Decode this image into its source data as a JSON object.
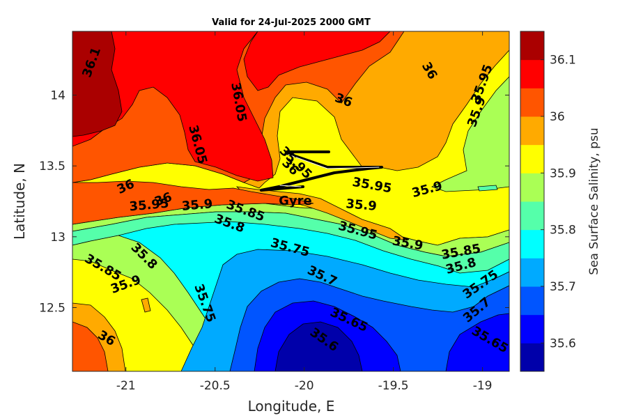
{
  "chart_data": {
    "type": "contour",
    "title": "Valid for 24-Jul-2025 2000 GMT",
    "xlabel": "Longitude, E",
    "ylabel": "Latitude, N",
    "xlim": [
      -21.3,
      -18.85
    ],
    "ylim": [
      12.05,
      14.45
    ],
    "xticks": [
      -21,
      -20.5,
      -20,
      -19.5,
      -19
    ],
    "xtick_labels": [
      "-21",
      "-20.5",
      "-20",
      "-19.5",
      "-19"
    ],
    "yticks": [
      12.5,
      13,
      13.5,
      14
    ],
    "ytick_labels": [
      "12.5",
      "13",
      "13.5",
      "14"
    ],
    "colorbar": {
      "label": "Sea Surface Salinity, psu",
      "position": "right",
      "min": 35.55,
      "max": 36.15,
      "step": 0.05,
      "ticks": [
        35.6,
        35.7,
        35.8,
        35.9,
        36,
        36.1
      ],
      "tick_labels": [
        "35.6",
        "35.7",
        "35.8",
        "35.9",
        "36",
        "36.1"
      ],
      "colors": [
        "#0000aa",
        "#0000ff",
        "#0055ff",
        "#00aaff",
        "#00ffff",
        "#55ffaa",
        "#aaff55",
        "#ffff00",
        "#ffaa00",
        "#ff5500",
        "#ff0000",
        "#aa0000"
      ]
    },
    "contour_levels": [
      35.55,
      35.6,
      35.65,
      35.7,
      35.75,
      35.8,
      35.85,
      35.9,
      35.95,
      36,
      36.05,
      36.1,
      36.15
    ],
    "contour_labels": [
      {
        "text": "36.1",
        "lon": -21.19,
        "lat": 14.23
      },
      {
        "text": "36.05",
        "lon": -20.37,
        "lat": 13.95
      },
      {
        "text": "36.05",
        "lon": -20.6,
        "lat": 13.65
      },
      {
        "text": "36",
        "lon": -19.78,
        "lat": 13.96
      },
      {
        "text": "36",
        "lon": -19.3,
        "lat": 14.17
      },
      {
        "text": "35.95",
        "lon": -19.0,
        "lat": 14.08
      },
      {
        "text": "35.9",
        "lon": -19.03,
        "lat": 13.88
      },
      {
        "text": "36",
        "lon": -21.0,
        "lat": 13.35
      },
      {
        "text": "36",
        "lon": -20.79,
        "lat": 13.26
      },
      {
        "text": "36",
        "lon": -20.08,
        "lat": 13.49
      },
      {
        "text": "35.95",
        "lon": -20.05,
        "lat": 13.52
      },
      {
        "text": "35.95",
        "lon": -20.87,
        "lat": 13.22
      },
      {
        "text": "35.9",
        "lon": -20.6,
        "lat": 13.22
      },
      {
        "text": "35.85",
        "lon": -20.33,
        "lat": 13.18
      },
      {
        "text": "35.8",
        "lon": -20.42,
        "lat": 13.09
      },
      {
        "text": "35.95",
        "lon": -19.62,
        "lat": 13.36
      },
      {
        "text": "35.9",
        "lon": -19.31,
        "lat": 13.33
      },
      {
        "text": "35.9",
        "lon": -19.68,
        "lat": 13.22
      },
      {
        "text": "35.95",
        "lon": -19.7,
        "lat": 13.04
      },
      {
        "text": "35.9",
        "lon": -19.42,
        "lat": 12.95
      },
      {
        "text": "35.85",
        "lon": -19.12,
        "lat": 12.89
      },
      {
        "text": "35.8",
        "lon": -19.12,
        "lat": 12.79
      },
      {
        "text": "35.75",
        "lon": -20.08,
        "lat": 12.92
      },
      {
        "text": "35.7",
        "lon": -19.9,
        "lat": 12.72
      },
      {
        "text": "35.75",
        "lon": -19.01,
        "lat": 12.66
      },
      {
        "text": "35.65",
        "lon": -19.75,
        "lat": 12.41
      },
      {
        "text": "35.7",
        "lon": -19.03,
        "lat": 12.48
      },
      {
        "text": "35.65",
        "lon": -18.96,
        "lat": 12.27
      },
      {
        "text": "35.6",
        "lon": -19.89,
        "lat": 12.27
      },
      {
        "text": "35.75",
        "lon": -20.56,
        "lat": 12.53
      },
      {
        "text": "35.8",
        "lon": -20.9,
        "lat": 12.86
      },
      {
        "text": "35.85",
        "lon": -21.13,
        "lat": 12.78
      },
      {
        "text": "35.9",
        "lon": -21.0,
        "lat": 12.66
      },
      {
        "text": "36",
        "lon": -21.11,
        "lat": 12.28
      }
    ],
    "annotations": [
      {
        "text": "Gyre",
        "lon": -20.05,
        "lat": 13.25
      }
    ]
  }
}
